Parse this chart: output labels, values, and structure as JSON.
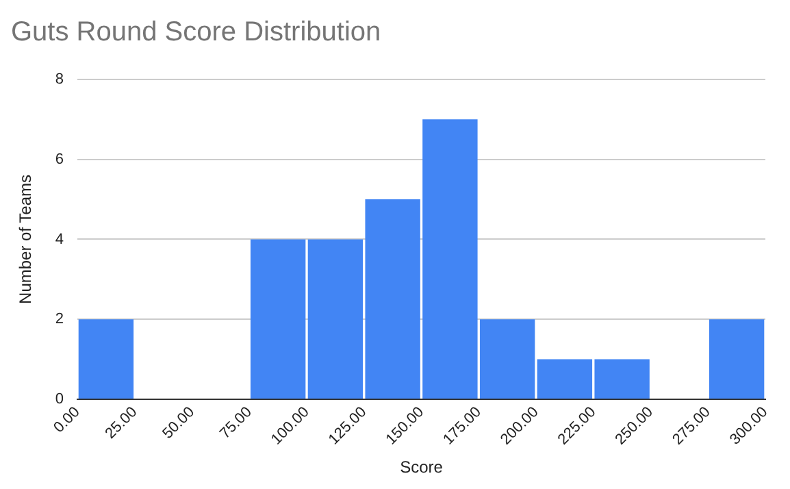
{
  "chart_data": {
    "type": "histogram",
    "title": "Guts Round Score Distribution",
    "xlabel": "Score",
    "ylabel": "Number of Teams",
    "bins": [
      0,
      25,
      50,
      75,
      100,
      125,
      150,
      175,
      200,
      225,
      250,
      275,
      300
    ],
    "values": [
      2,
      0,
      0,
      4,
      4,
      5,
      7,
      2,
      1,
      1,
      0,
      2
    ],
    "color": "#4285f4",
    "xlim": [
      0,
      300
    ],
    "xticks": [
      {
        "value": 0,
        "label": "0.00"
      },
      {
        "value": 25,
        "label": "25.00"
      },
      {
        "value": 50,
        "label": "50.00"
      },
      {
        "value": 75,
        "label": "75.00"
      },
      {
        "value": 100,
        "label": "100.00"
      },
      {
        "value": 125,
        "label": "125.00"
      },
      {
        "value": 150,
        "label": "150.00"
      },
      {
        "value": 175,
        "label": "175.00"
      },
      {
        "value": 200,
        "label": "200.00"
      },
      {
        "value": 225,
        "label": "225.00"
      },
      {
        "value": 250,
        "label": "250.00"
      },
      {
        "value": 275,
        "label": "275.00"
      },
      {
        "value": 300,
        "label": "300.00"
      }
    ],
    "ylim": [
      0,
      8
    ],
    "yticks": [
      0,
      2,
      4,
      6,
      8
    ],
    "grid": "y",
    "legend": false
  }
}
